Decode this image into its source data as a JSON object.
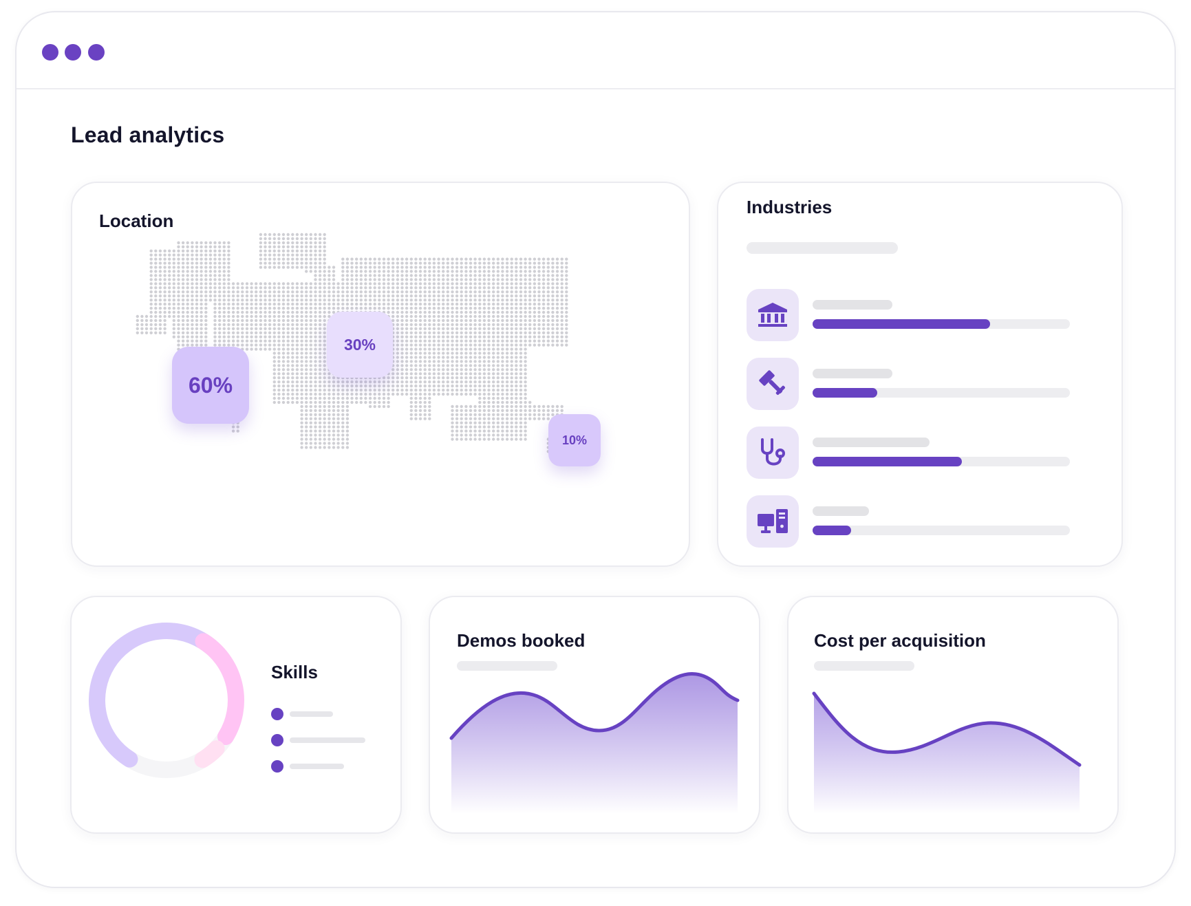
{
  "window": {
    "controls": [
      "window-dot",
      "window-dot",
      "window-dot"
    ],
    "accent_color": "#6742c2"
  },
  "page": {
    "title": "Lead analytics"
  },
  "location": {
    "title": "Location",
    "badges": [
      {
        "region": "americas",
        "label": "60%",
        "value": 60
      },
      {
        "region": "europe",
        "label": "30%",
        "value": 30
      },
      {
        "region": "southeast-asia",
        "label": "10%",
        "value": 10
      }
    ]
  },
  "industries": {
    "title": "Industries",
    "items": [
      {
        "icon": "bank-icon",
        "share": 0.69
      },
      {
        "icon": "gavel-icon",
        "share": 0.25
      },
      {
        "icon": "stethoscope-icon",
        "share": 0.58
      },
      {
        "icon": "computer-icon",
        "share": 0.15
      }
    ]
  },
  "skills": {
    "title": "Skills",
    "colors": [
      "#d7c9fb",
      "#ffc4f4",
      "#ffe0f2",
      "#f5f5f7"
    ],
    "legend_items": 3
  },
  "demos_booked": {
    "title": "Demos booked"
  },
  "cost_per_acquisition": {
    "title": "Cost per acquisition"
  }
}
